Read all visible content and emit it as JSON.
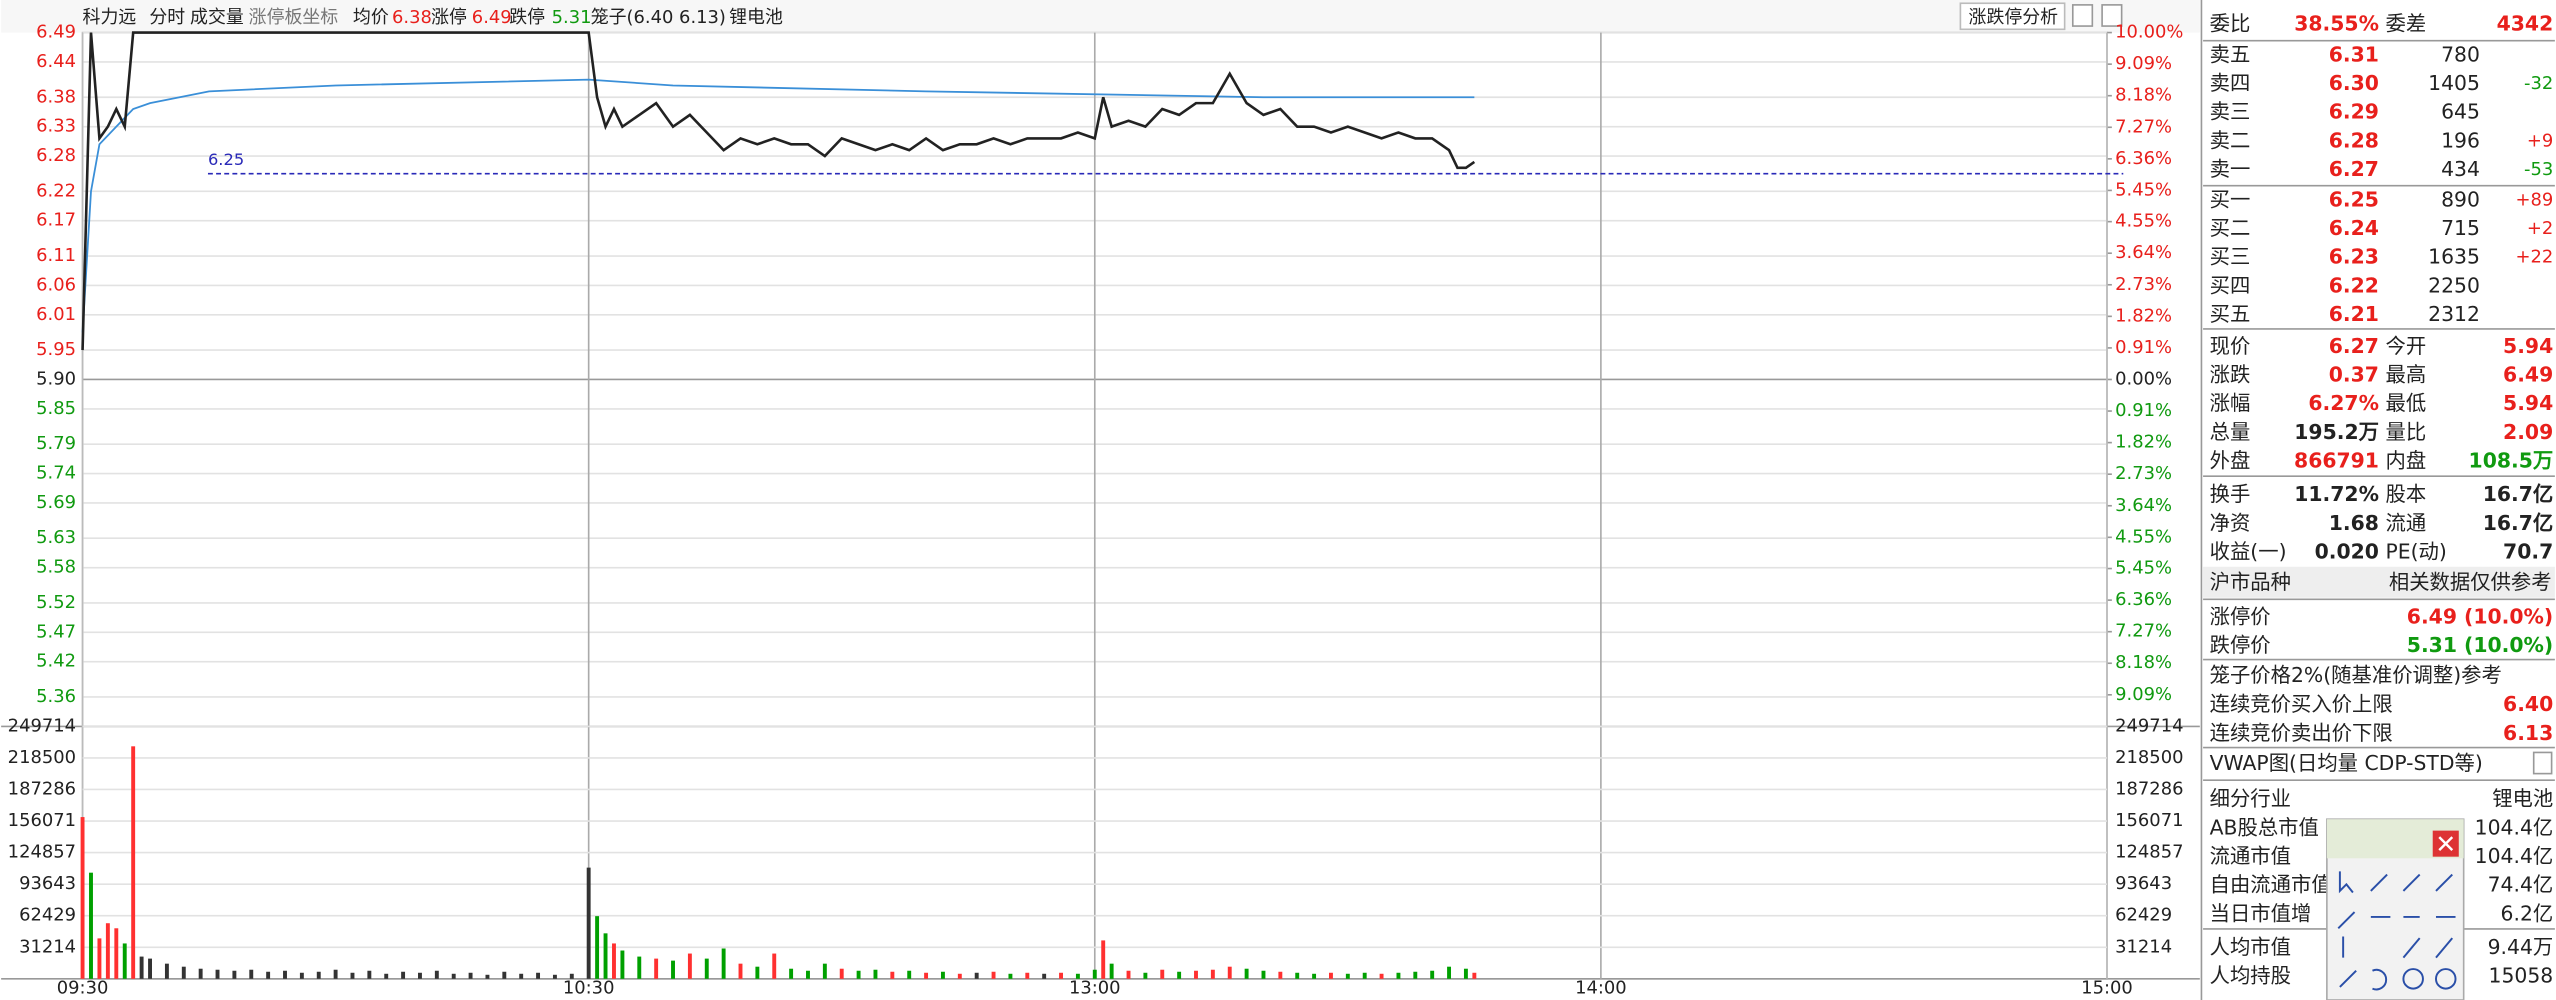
{
  "header": {
    "name": "科力远",
    "tabs": [
      "分时",
      "成交量",
      "涨停板坐标"
    ],
    "avg": "6.38",
    "limit_up_label": "涨停",
    "limit_up": "6.49",
    "limit_down_label": "跌停",
    "limit_down": "5.31",
    "cage": "笼子(6.40 6.13)",
    "sector": "锂电池",
    "button": "涨跌停分析"
  },
  "chart_data": [
    {
      "type": "line",
      "xlim": [
        0,
        240
      ],
      "xticks": [
        {
          "value": 0,
          "label": "09:30"
        },
        {
          "value": 60,
          "label": "10:30"
        },
        {
          "value": 120,
          "label": "13:00"
        },
        {
          "value": 180,
          "label": "14:00"
        },
        {
          "value": 240,
          "label": "15:00"
        }
      ],
      "ylim": [
        5.31,
        6.49
      ],
      "yticks": [
        6.49,
        6.44,
        6.38,
        6.33,
        6.28,
        6.22,
        6.17,
        6.11,
        6.06,
        6.01,
        5.95,
        {
          "value": 5.9,
          "label": "5.90"
        },
        5.85,
        5.79,
        5.74,
        5.69,
        5.63,
        5.58,
        5.52,
        5.47,
        5.42,
        5.36
      ],
      "y2lim": [
        -10,
        10
      ],
      "y2ticks": [
        {
          "value": 10,
          "label": "10.00%"
        },
        {
          "value": 9.09,
          "label": "9.09%"
        },
        {
          "value": 8.18,
          "label": "8.18%"
        },
        {
          "value": 7.27,
          "label": "7.27%"
        },
        {
          "value": 6.36,
          "label": "6.36%"
        },
        {
          "value": 5.45,
          "label": "5.45%"
        },
        {
          "value": 4.55,
          "label": "4.55%"
        },
        {
          "value": 3.64,
          "label": "3.64%"
        },
        {
          "value": 2.73,
          "label": "2.73%"
        },
        {
          "value": 1.82,
          "label": "1.82%"
        },
        {
          "value": 0.91,
          "label": "0.91%"
        },
        {
          "value": 0,
          "label": "0.00%"
        },
        {
          "value": -0.91,
          "label": "0.91%"
        },
        {
          "value": -1.82,
          "label": "1.82%"
        },
        {
          "value": -2.73,
          "label": "2.73%"
        },
        {
          "value": -3.64,
          "label": "3.64%"
        },
        {
          "value": -4.55,
          "label": "4.55%"
        },
        {
          "value": -5.45,
          "label": "5.45%"
        },
        {
          "value": -6.36,
          "label": "6.36%"
        },
        {
          "value": -7.27,
          "label": "7.27%"
        },
        {
          "value": -8.18,
          "label": "8.18%"
        },
        {
          "value": -9.09,
          "label": "9.09%"
        }
      ],
      "grid": true,
      "reference": 6.25,
      "reference_color": "#2a2ab8",
      "series": [
        {
          "color": "#222222",
          "x": [
            0,
            1,
            2,
            3,
            4,
            5,
            6,
            60,
            61,
            62,
            63,
            64,
            66,
            68,
            70,
            72,
            74,
            76,
            78,
            80,
            82,
            84,
            86,
            88,
            90,
            92,
            94,
            96,
            98,
            100,
            102,
            104,
            106,
            108,
            110,
            112,
            114,
            116,
            118,
            120,
            121,
            122,
            124,
            126,
            128,
            130,
            132,
            134,
            136,
            138,
            140,
            142,
            144,
            146,
            148,
            150,
            152,
            154,
            156,
            158,
            160,
            162,
            163,
            164,
            165
          ],
          "values": [
            5.95,
            6.49,
            6.31,
            6.33,
            6.36,
            6.33,
            6.49,
            6.49,
            6.38,
            6.33,
            6.36,
            6.33,
            6.35,
            6.37,
            6.33,
            6.35,
            6.32,
            6.29,
            6.31,
            6.3,
            6.31,
            6.3,
            6.3,
            6.28,
            6.31,
            6.3,
            6.29,
            6.3,
            6.29,
            6.31,
            6.29,
            6.3,
            6.3,
            6.31,
            6.3,
            6.31,
            6.31,
            6.31,
            6.32,
            6.31,
            6.38,
            6.33,
            6.34,
            6.33,
            6.36,
            6.35,
            6.37,
            6.37,
            6.42,
            6.37,
            6.35,
            6.36,
            6.33,
            6.33,
            6.32,
            6.33,
            6.32,
            6.31,
            6.32,
            6.31,
            6.31,
            6.29,
            6.26,
            6.26,
            6.27
          ]
        },
        {
          "name": "均价",
          "color": "#3a8fd8",
          "x": [
            0,
            1,
            2,
            4,
            6,
            8,
            15,
            30,
            60,
            70,
            100,
            140,
            165
          ],
          "values": [
            5.98,
            6.22,
            6.3,
            6.33,
            6.36,
            6.37,
            6.39,
            6.4,
            6.41,
            6.4,
            6.39,
            6.38,
            6.38
          ]
        }
      ]
    },
    {
      "type": "bar",
      "xlim": [
        0,
        240
      ],
      "ylim": [
        0,
        249714
      ],
      "yticks": [
        31214,
        62429,
        93643,
        124857,
        156071,
        187286,
        218500,
        249714
      ],
      "x": [
        0,
        1,
        2,
        3,
        4,
        5,
        6,
        7,
        8,
        10,
        12,
        14,
        16,
        18,
        20,
        22,
        24,
        26,
        28,
        30,
        32,
        34,
        36,
        38,
        40,
        42,
        44,
        46,
        48,
        50,
        52,
        54,
        56,
        58,
        60,
        61,
        62,
        63,
        64,
        66,
        68,
        70,
        72,
        74,
        76,
        78,
        80,
        82,
        84,
        86,
        88,
        90,
        92,
        94,
        96,
        98,
        100,
        102,
        104,
        106,
        108,
        110,
        112,
        114,
        116,
        118,
        120,
        121,
        122,
        124,
        126,
        128,
        130,
        132,
        134,
        136,
        138,
        140,
        142,
        144,
        146,
        148,
        150,
        152,
        154,
        156,
        158,
        160,
        162,
        164,
        165
      ],
      "values": [
        160000,
        105000,
        40000,
        55000,
        50000,
        35000,
        230000,
        22000,
        20000,
        15000,
        12000,
        10000,
        9000,
        8000,
        9000,
        7000,
        8000,
        6000,
        7000,
        9000,
        6000,
        8000,
        5000,
        7000,
        6000,
        8000,
        5000,
        6000,
        4000,
        7000,
        5000,
        6000,
        4000,
        5000,
        110000,
        62000,
        45000,
        35000,
        28000,
        22000,
        20000,
        18000,
        25000,
        20000,
        30000,
        15000,
        12000,
        25000,
        10000,
        8000,
        15000,
        10000,
        8000,
        9000,
        7000,
        8000,
        6000,
        7000,
        5000,
        6000,
        7000,
        5000,
        6000,
        5000,
        6000,
        5000,
        9000,
        38000,
        15000,
        8000,
        6000,
        9000,
        7000,
        8000,
        9000,
        12000,
        10000,
        8000,
        7000,
        6000,
        5000,
        6000,
        5000,
        6000,
        5000,
        6000,
        7000,
        8000,
        12000,
        10000,
        6000
      ],
      "colors": [
        "#ff3030",
        "#00a000",
        "#ff3030",
        "#ff3030",
        "#ff3030",
        "#00a000",
        "#ff3030",
        "#333333",
        "#333333",
        "#333333",
        "#333333",
        "#333333",
        "#333333",
        "#333333",
        "#333333",
        "#333333",
        "#333333",
        "#333333",
        "#333333",
        "#333333",
        "#333333",
        "#333333",
        "#333333",
        "#333333",
        "#333333",
        "#333333",
        "#333333",
        "#333333",
        "#333333",
        "#333333",
        "#333333",
        "#333333",
        "#333333",
        "#333333",
        "#333333",
        "#00a000",
        "#00a000",
        "#ff3030",
        "#00a000",
        "#00a000",
        "#ff3030",
        "#00a000",
        "#ff3030",
        "#00a000",
        "#00a000",
        "#ff3030",
        "#00a000",
        "#ff3030",
        "#00a000",
        "#00a000",
        "#00a000",
        "#ff3030",
        "#00a000",
        "#00a000",
        "#ff3030",
        "#00a000",
        "#ff3030",
        "#00a000",
        "#ff3030",
        "#333333",
        "#ff3030",
        "#00a000",
        "#ff3030",
        "#333333",
        "#ff3030",
        "#00a000",
        "#00a000",
        "#ff3030",
        "#00a000",
        "#ff3030",
        "#00a000",
        "#ff3030",
        "#00a000",
        "#ff3030",
        "#ff3030",
        "#ff3030",
        "#00a000",
        "#00a000",
        "#ff3030",
        "#00a000",
        "#00a000",
        "#ff3030",
        "#00a000",
        "#00a000",
        "#ff3030",
        "#00a000",
        "#00a000",
        "#00a000",
        "#00a000",
        "#00a000",
        "#ff3030"
      ]
    }
  ],
  "quote": {
    "ratio": [
      "委比",
      "38.55%",
      "委差",
      "4342"
    ],
    "asks": [
      [
        "卖五",
        "6.31",
        "780"
      ],
      [
        "卖四",
        "6.30",
        "1405",
        "-32"
      ],
      [
        "卖三",
        "6.29",
        "645"
      ],
      [
        "卖二",
        "6.28",
        "196",
        "+9"
      ],
      [
        "卖一",
        "6.27",
        "434",
        "-53"
      ]
    ],
    "bids": [
      [
        "买一",
        "6.25",
        "890",
        "+89"
      ],
      [
        "买二",
        "6.24",
        "715",
        "+2"
      ],
      [
        "买三",
        "6.23",
        "1635",
        "+22"
      ],
      [
        "买四",
        "6.22",
        "2250"
      ],
      [
        "买五",
        "6.21",
        "2312"
      ]
    ],
    "stats": [
      [
        "现价",
        "6.27",
        "今开",
        "5.94"
      ],
      [
        "涨跌",
        "0.37",
        "最高",
        "6.49"
      ],
      [
        "涨幅",
        "6.27%",
        "最低",
        "5.94"
      ],
      [
        "总量",
        "195.2万",
        "量比",
        "2.09"
      ],
      [
        "外盘",
        "866791",
        "内盘",
        "108.5万"
      ],
      [
        "换手",
        "11.72%",
        "股本",
        "16.7亿"
      ],
      [
        "净资",
        "1.68",
        "流通",
        "16.7亿"
      ],
      [
        "收益(一)",
        "0.020",
        "PE(动)",
        "70.7"
      ]
    ],
    "market": [
      "沪市品种",
      "相关数据仅供参考"
    ],
    "limits": [
      [
        "涨停价",
        "6.49 (10.0%)"
      ],
      [
        "跌停价",
        "5.31 (10.0%)"
      ]
    ],
    "cage_title": "笼子价格2%(随基准价调整)参考",
    "cage": [
      [
        "连续竞价买入价上限",
        "6.40"
      ],
      [
        "连续竞价卖出价下限",
        "6.13"
      ]
    ],
    "vwap": "VWAP图(日均量 CDP-STD等)",
    "industry": [
      [
        "细分行业",
        "锂电池"
      ],
      [
        "AB股总市值",
        "104.4亿"
      ],
      [
        "流通市值",
        "104.4亿"
      ],
      [
        "自由流通市值",
        "74.4亿"
      ],
      [
        "当日市值增",
        "6.2亿"
      ],
      [
        "人均市值",
        "9.44万"
      ],
      [
        "人均持股",
        "15058"
      ]
    ]
  }
}
